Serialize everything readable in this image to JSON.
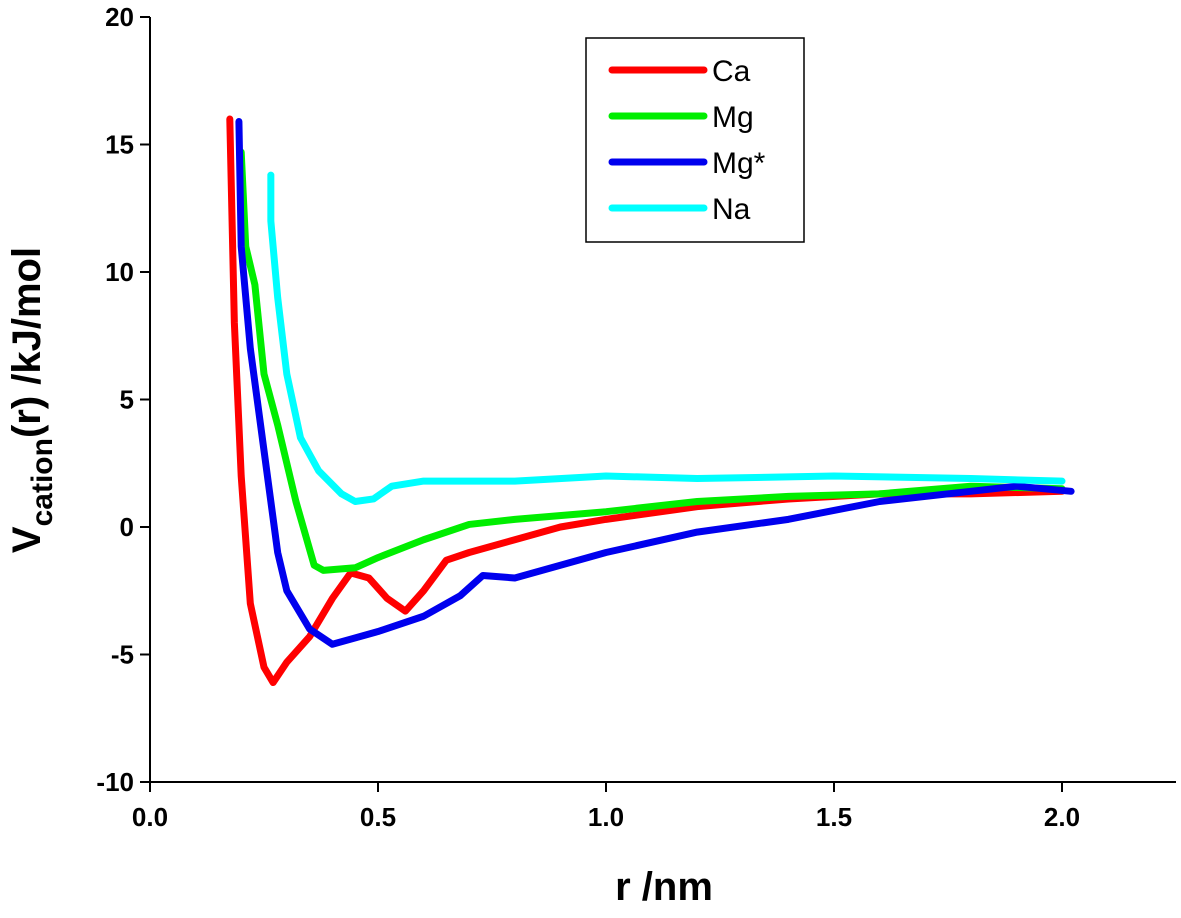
{
  "chart_data": {
    "type": "line",
    "xlabel": "r /nm",
    "ylabel_main": "V",
    "ylabel_sub": "cation",
    "ylabel_rest": "(r) /kJ/mol",
    "xlim": [
      0,
      2.25
    ],
    "ylim": [
      -10,
      20
    ],
    "xticks": [
      {
        "value": 0,
        "label": "0.0"
      },
      0.5,
      {
        "value": 1,
        "label": "1.0"
      },
      1.5,
      {
        "value": 2,
        "label": "2.0"
      }
    ],
    "yticks": [
      -10,
      -5,
      0,
      5,
      10,
      15,
      20
    ],
    "series": [
      {
        "name": "Ca",
        "color": "#ff0000",
        "x": [
          0.175,
          0.185,
          0.2,
          0.22,
          0.25,
          0.27,
          0.3,
          0.35,
          0.4,
          0.44,
          0.48,
          0.52,
          0.56,
          0.6,
          0.65,
          0.7,
          0.8,
          0.9,
          1.0,
          1.2,
          1.4,
          1.6,
          1.8,
          2.0
        ],
        "values": [
          16,
          8,
          2,
          -3,
          -5.5,
          -6.1,
          -5.3,
          -4.3,
          -2.8,
          -1.8,
          -2,
          -2.8,
          -3.3,
          -2.5,
          -1.3,
          -1,
          -0.5,
          0,
          0.3,
          0.8,
          1.1,
          1.3,
          1.3,
          1.4
        ]
      },
      {
        "name": " Mg",
        "color": "#00ee00",
        "x": [
          0.2,
          0.21,
          0.23,
          0.25,
          0.28,
          0.32,
          0.36,
          0.38,
          0.45,
          0.5,
          0.6,
          0.7,
          0.8,
          1.0,
          1.2,
          1.4,
          1.6,
          1.8,
          2.0
        ],
        "values": [
          14.7,
          11,
          9.5,
          6,
          4,
          1,
          -1.5,
          -1.7,
          -1.6,
          -1.2,
          -0.5,
          0.1,
          0.3,
          0.6,
          1,
          1.2,
          1.3,
          1.6,
          1.5
        ]
      },
      {
        "name": "Mg*",
        "color": "#0000ee",
        "x": [
          0.195,
          0.2,
          0.22,
          0.25,
          0.28,
          0.3,
          0.35,
          0.4,
          0.5,
          0.6,
          0.68,
          0.73,
          0.8,
          0.9,
          1.0,
          1.2,
          1.4,
          1.6,
          1.8,
          1.9,
          2.02
        ],
        "values": [
          15.9,
          11,
          7,
          3,
          -1,
          -2.5,
          -4,
          -4.6,
          -4.1,
          -3.5,
          -2.7,
          -1.9,
          -2,
          -1.5,
          -1,
          -0.2,
          0.3,
          1,
          1.4,
          1.6,
          1.4
        ]
      },
      {
        "name": "Na",
        "color": "#00ffff",
        "x": [
          0.265,
          0.265,
          0.28,
          0.3,
          0.33,
          0.37,
          0.42,
          0.45,
          0.49,
          0.53,
          0.6,
          0.8,
          1.0,
          1.2,
          1.5,
          1.8,
          2.0
        ],
        "values": [
          13.8,
          12,
          9,
          6,
          3.5,
          2.2,
          1.3,
          1,
          1.1,
          1.6,
          1.8,
          1.8,
          2,
          1.9,
          2,
          1.9,
          1.8
        ]
      }
    ]
  }
}
